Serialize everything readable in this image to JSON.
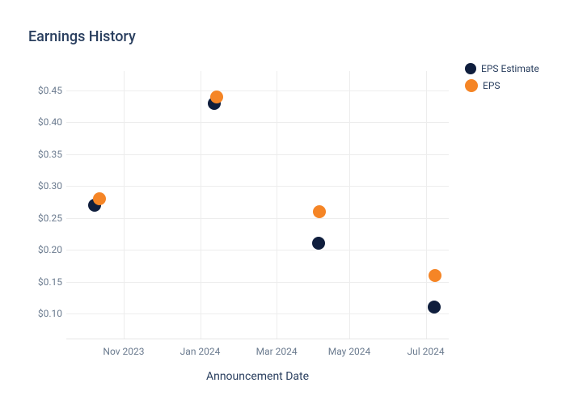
{
  "chart": {
    "type": "scatter",
    "title": "Earnings History",
    "title_fontsize": 18,
    "title_color": "#2a3f5f",
    "background_color": "#ffffff",
    "grid_color": "#ededed",
    "tick_label_color": "#6b7b8f",
    "tick_fontsize": 12,
    "axis_title_fontsize": 14,
    "axis_title_color": "#2a3f5f",
    "x_axis_title": "Announcement Date",
    "x_ticks": [
      {
        "label": "Nov 2023",
        "pos": 0.15
      },
      {
        "label": "Jan 2024",
        "pos": 0.35
      },
      {
        "label": "Mar 2024",
        "pos": 0.55
      },
      {
        "label": "May 2024",
        "pos": 0.74
      },
      {
        "label": "Jul 2024",
        "pos": 0.94
      }
    ],
    "y_axis": {
      "min": 0.06,
      "max": 0.48,
      "ticks": [
        0.1,
        0.15,
        0.2,
        0.25,
        0.3,
        0.35,
        0.4,
        0.45
      ],
      "tick_labels": [
        "$0.10",
        "$0.15",
        "$0.20",
        "$0.25",
        "$0.30",
        "$0.35",
        "$0.40",
        "$0.45"
      ]
    },
    "series": [
      {
        "name": "EPS Estimate",
        "color": "#0f1e3d",
        "marker_size": 16,
        "points": [
          {
            "x": 0.074,
            "y": 0.27
          },
          {
            "x": 0.386,
            "y": 0.43
          },
          {
            "x": 0.66,
            "y": 0.21
          },
          {
            "x": 0.962,
            "y": 0.11
          }
        ]
      },
      {
        "name": "EPS",
        "color": "#f58526",
        "marker_size": 16,
        "points": [
          {
            "x": 0.086,
            "y": 0.28
          },
          {
            "x": 0.394,
            "y": 0.44
          },
          {
            "x": 0.662,
            "y": 0.26
          },
          {
            "x": 0.964,
            "y": 0.16
          }
        ]
      }
    ],
    "legend": {
      "items": [
        {
          "label": "EPS Estimate",
          "color": "#0f1e3d",
          "swatch_size": 14
        },
        {
          "label": "EPS",
          "color": "#f58526",
          "swatch_size": 16
        }
      ]
    }
  }
}
